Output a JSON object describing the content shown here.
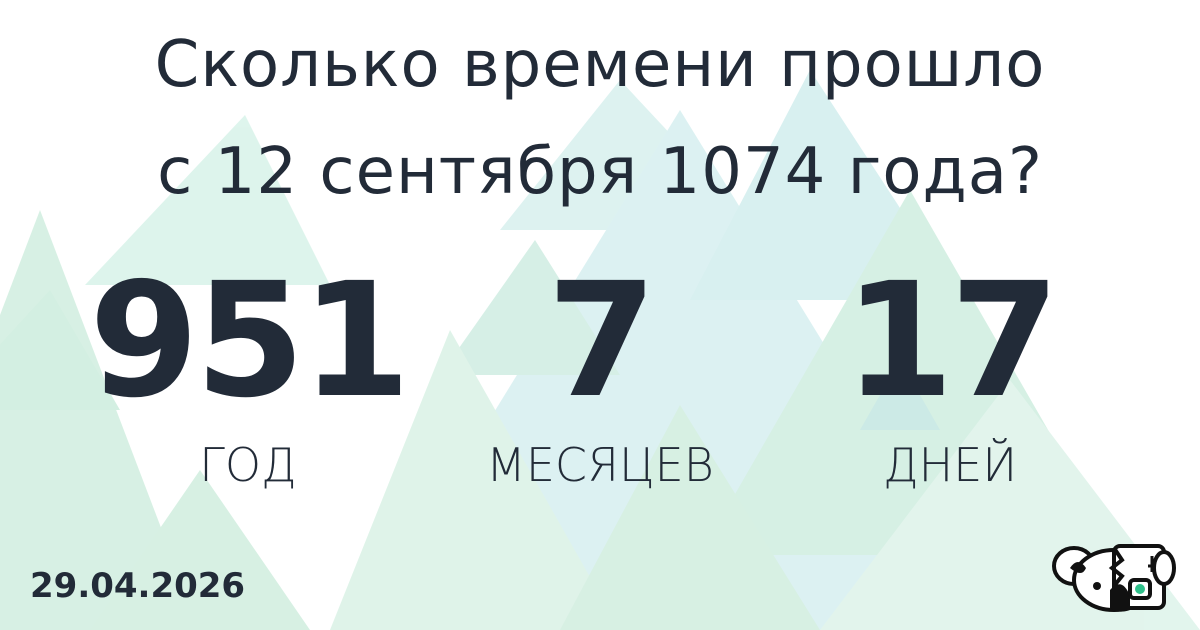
{
  "title": {
    "line1": "Сколько времени прошло",
    "line2": "с 12 сентября 1074 года?"
  },
  "counters": [
    {
      "value": "951",
      "label": "ГОД"
    },
    {
      "value": "7",
      "label": "МЕСЯЦЕВ"
    },
    {
      "value": "17",
      "label": "ДНЕЙ"
    }
  ],
  "date": "29.04.2026",
  "logo": {
    "icon": "koala-robot-logo"
  },
  "colors": {
    "text": "#222b38",
    "triangle_green": "#bfe8d2",
    "triangle_teal": "#bfe6ea"
  }
}
